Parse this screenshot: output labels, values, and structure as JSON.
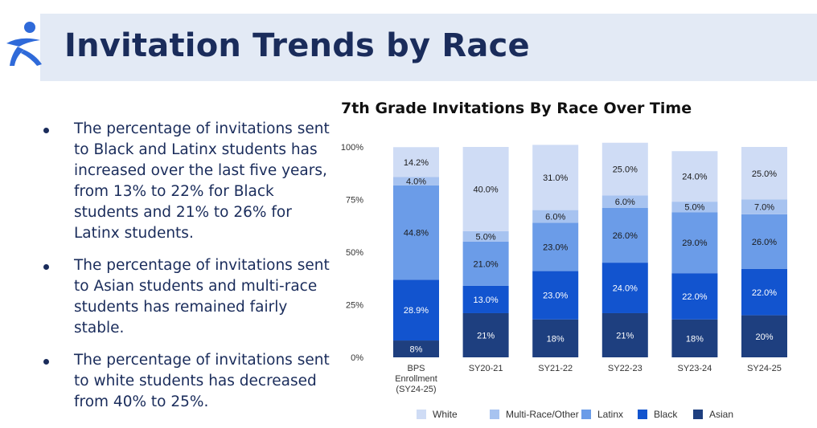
{
  "header": {
    "title": "Invitation Trends by Race"
  },
  "logo": {
    "icon": "runner-figure-logo"
  },
  "bullets": [
    "The percentage of invitations sent to Black and Latinx students has increased over the last five years, from 13% to 22% for Black students and 21% to 26% for Latinx students.",
    "The percentage of invitations sent to Asian students and multi-race students has remained fairly stable.",
    "The percentage of invitations sent to white students has decreased from 40% to 25%."
  ],
  "chart_data": {
    "type": "bar",
    "stacked": true,
    "title": "7th Grade Invitations By Race Over Time",
    "xlabel": "",
    "ylabel": "",
    "ylim": [
      0,
      100
    ],
    "y_ticks": [
      "0%",
      "25%",
      "50%",
      "75%",
      "100%"
    ],
    "categories": [
      [
        "BPS",
        "Enrollment",
        "(SY24-25)"
      ],
      [
        "SY20-21"
      ],
      [
        "SY21-22"
      ],
      [
        "SY22-23"
      ],
      [
        "SY23-24"
      ],
      [
        "SY24-25"
      ]
    ],
    "series": [
      {
        "name": "Asian",
        "color": "#1e3f7f",
        "label_color": "#ffffff",
        "values": [
          8,
          21,
          18,
          21,
          18,
          20
        ],
        "labels": [
          "8%",
          "21%",
          "18%",
          "21%",
          "18%",
          "20%"
        ]
      },
      {
        "name": "Black",
        "color": "#1254cf",
        "label_color": "#ffffff",
        "values": [
          28.9,
          13.0,
          23.0,
          24.0,
          22.0,
          22.0
        ],
        "labels": [
          "28.9%",
          "13.0%",
          "23.0%",
          "24.0%",
          "22.0%",
          "22.0%"
        ]
      },
      {
        "name": "Latinx",
        "color": "#6b9ce8",
        "label_color": "#1a1a1a",
        "values": [
          44.8,
          21.0,
          23.0,
          26.0,
          29.0,
          26.0
        ],
        "labels": [
          "44.8%",
          "21.0%",
          "23.0%",
          "26.0%",
          "29.0%",
          "26.0%"
        ]
      },
      {
        "name": "Multi-Race/Other",
        "color": "#a7c3f0",
        "label_color": "#1a1a1a",
        "values": [
          4.0,
          5.0,
          6.0,
          6.0,
          5.0,
          7.0
        ],
        "labels": [
          "4.0%",
          "5.0%",
          "6.0%",
          "6.0%",
          "5.0%",
          "7.0%"
        ]
      },
      {
        "name": "White",
        "color": "#cfdcf5",
        "label_color": "#1a1a1a",
        "values": [
          14.2,
          40.0,
          31.0,
          25.0,
          24.0,
          25.0
        ],
        "labels": [
          "14.2%",
          "40.0%",
          "31.0%",
          "25.0%",
          "24.0%",
          "25.0%"
        ]
      }
    ],
    "legend": {
      "placement": "bottom",
      "order": [
        "White",
        "Multi-Race/Other",
        "Latinx",
        "Black",
        "Asian"
      ]
    },
    "grid": false
  }
}
